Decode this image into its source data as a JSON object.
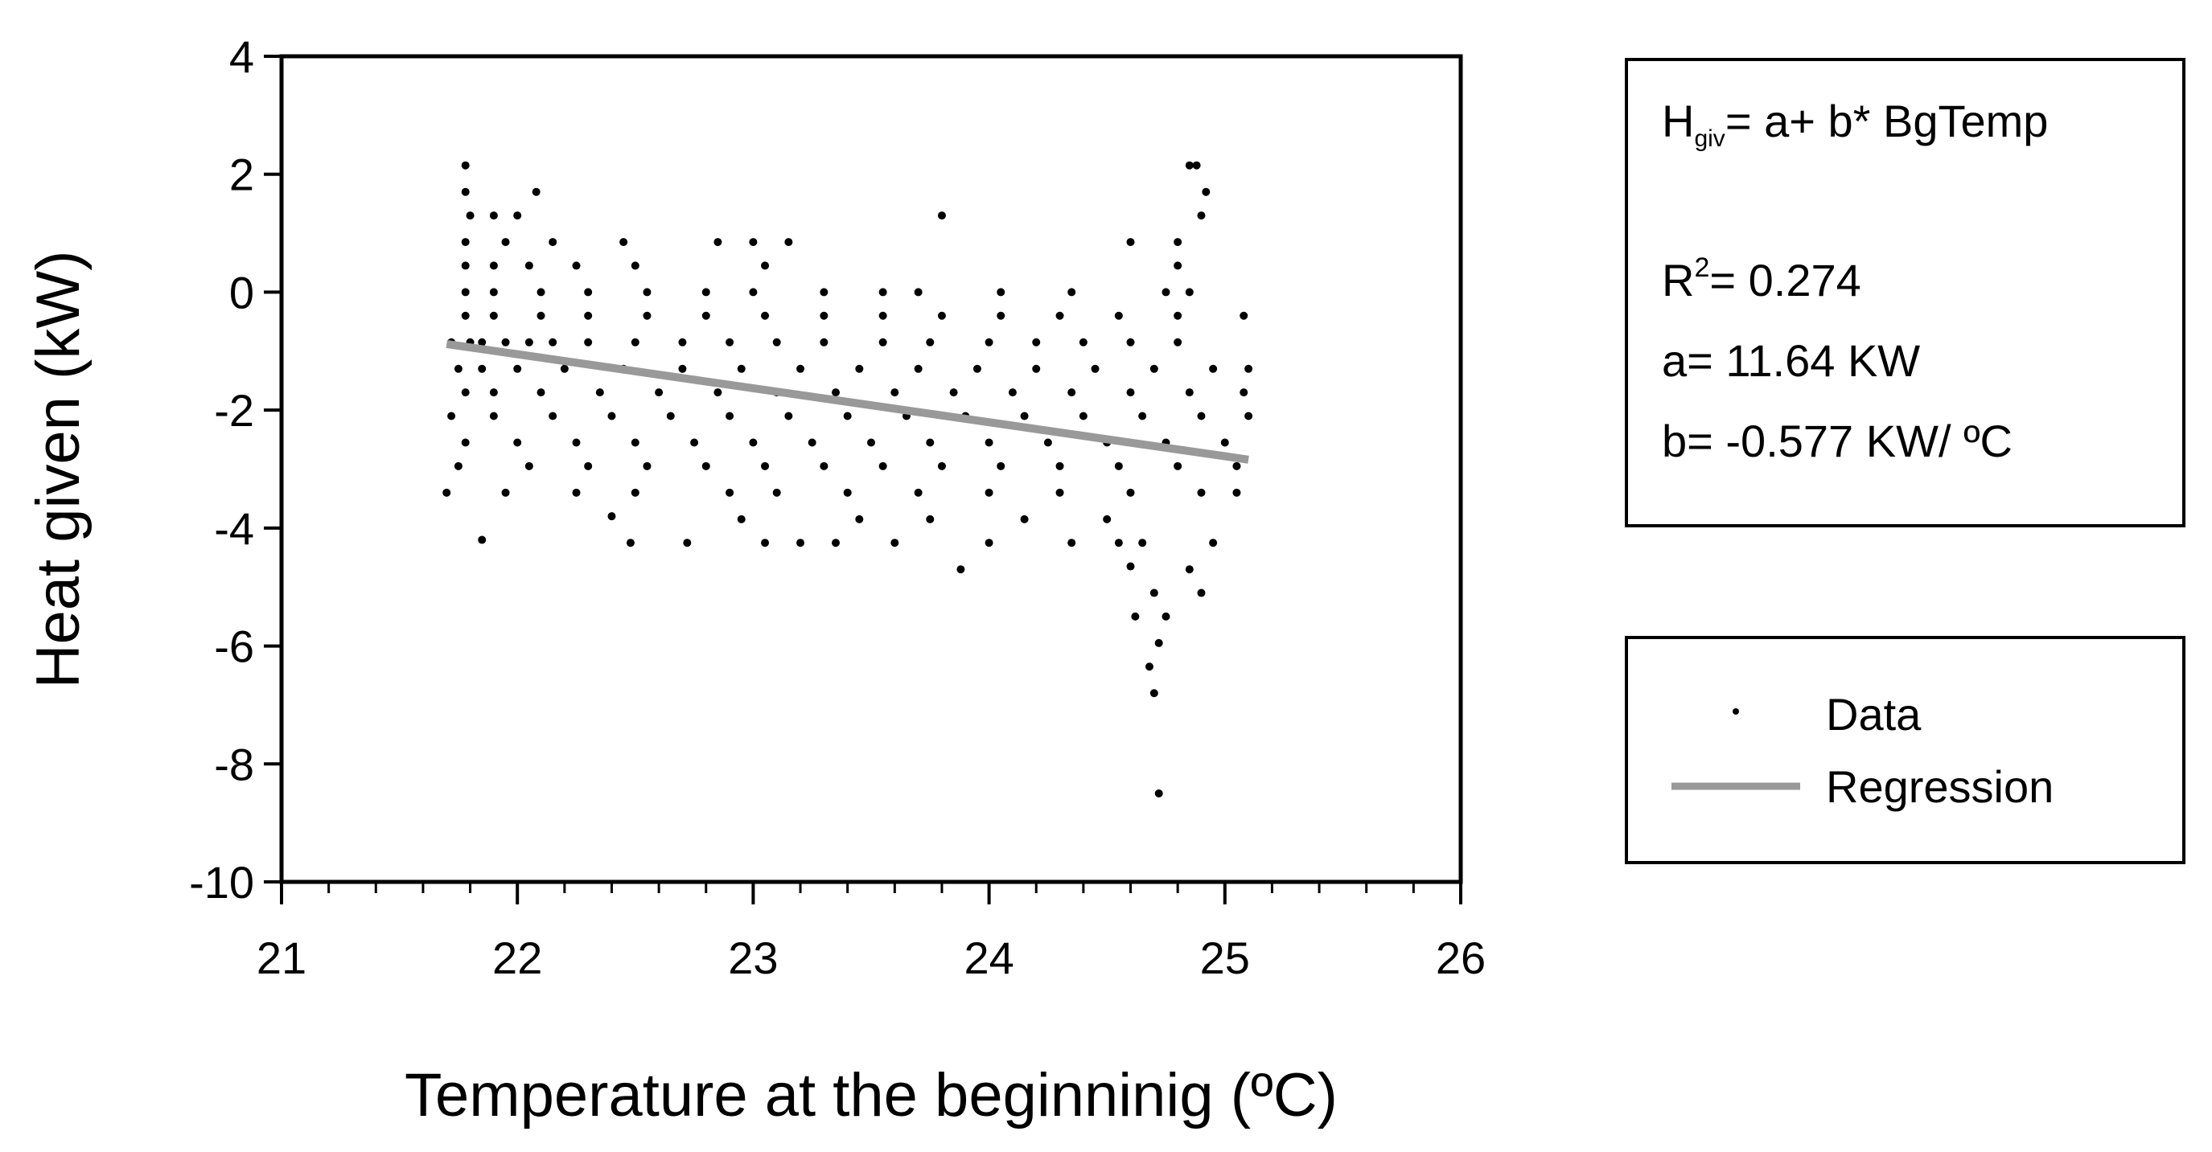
{
  "chart_data": {
    "type": "scatter",
    "xlabel": "Temperature at the beginninig (ºC)",
    "ylabel": "Heat given (kW)",
    "xlim": [
      21,
      26
    ],
    "ylim": [
      -10,
      4
    ],
    "x_ticks": [
      "21",
      "22",
      "23",
      "24",
      "25",
      "26"
    ],
    "y_ticks": [
      "4",
      "2",
      "0",
      "-2",
      "-4",
      "-6",
      "-8",
      "-10"
    ],
    "grid": false,
    "legend_position": "right",
    "series": [
      {
        "name": "Data",
        "marker": "dot",
        "color": "#000000",
        "points": [
          [
            21.72,
            -0.85
          ],
          [
            21.8,
            -0.85
          ],
          [
            21.85,
            -0.85
          ],
          [
            21.95,
            -0.85
          ],
          [
            22.05,
            -0.85
          ],
          [
            22.15,
            -0.85
          ],
          [
            22.3,
            -0.85
          ],
          [
            22.5,
            -0.85
          ],
          [
            22.7,
            -0.85
          ],
          [
            22.9,
            -0.85
          ],
          [
            23.1,
            -0.85
          ],
          [
            23.3,
            -0.85
          ],
          [
            23.55,
            -0.85
          ],
          [
            23.75,
            -0.85
          ],
          [
            24.0,
            -0.85
          ],
          [
            24.2,
            -0.85
          ],
          [
            24.4,
            -0.85
          ],
          [
            24.6,
            -0.85
          ],
          [
            24.8,
            -0.85
          ],
          [
            21.75,
            -1.3
          ],
          [
            21.85,
            -1.3
          ],
          [
            22.0,
            -1.3
          ],
          [
            22.2,
            -1.3
          ],
          [
            22.45,
            -1.3
          ],
          [
            22.7,
            -1.3
          ],
          [
            22.95,
            -1.3
          ],
          [
            23.2,
            -1.3
          ],
          [
            23.45,
            -1.3
          ],
          [
            23.7,
            -1.3
          ],
          [
            23.95,
            -1.3
          ],
          [
            24.2,
            -1.3
          ],
          [
            24.45,
            -1.3
          ],
          [
            24.7,
            -1.3
          ],
          [
            24.95,
            -1.3
          ],
          [
            25.1,
            -1.3
          ],
          [
            21.78,
            -1.7
          ],
          [
            21.9,
            -1.7
          ],
          [
            22.1,
            -1.7
          ],
          [
            22.35,
            -1.7
          ],
          [
            22.6,
            -1.7
          ],
          [
            22.85,
            -1.7
          ],
          [
            23.1,
            -1.7
          ],
          [
            23.35,
            -1.7
          ],
          [
            23.6,
            -1.7
          ],
          [
            23.85,
            -1.7
          ],
          [
            24.1,
            -1.7
          ],
          [
            24.35,
            -1.7
          ],
          [
            24.6,
            -1.7
          ],
          [
            24.85,
            -1.7
          ],
          [
            25.08,
            -1.7
          ],
          [
            21.72,
            -2.1
          ],
          [
            21.9,
            -2.1
          ],
          [
            22.15,
            -2.1
          ],
          [
            22.4,
            -2.1
          ],
          [
            22.65,
            -2.1
          ],
          [
            22.9,
            -2.1
          ],
          [
            23.15,
            -2.1
          ],
          [
            23.4,
            -2.1
          ],
          [
            23.65,
            -2.1
          ],
          [
            23.9,
            -2.1
          ],
          [
            24.15,
            -2.1
          ],
          [
            24.4,
            -2.1
          ],
          [
            24.65,
            -2.1
          ],
          [
            24.9,
            -2.1
          ],
          [
            25.1,
            -2.1
          ],
          [
            21.78,
            -2.55
          ],
          [
            22.0,
            -2.55
          ],
          [
            22.25,
            -2.55
          ],
          [
            22.5,
            -2.55
          ],
          [
            22.75,
            -2.55
          ],
          [
            23.0,
            -2.55
          ],
          [
            23.25,
            -2.55
          ],
          [
            23.5,
            -2.55
          ],
          [
            23.75,
            -2.55
          ],
          [
            24.0,
            -2.55
          ],
          [
            24.25,
            -2.55
          ],
          [
            24.5,
            -2.55
          ],
          [
            24.75,
            -2.55
          ],
          [
            25.0,
            -2.55
          ],
          [
            21.75,
            -2.95
          ],
          [
            22.05,
            -2.95
          ],
          [
            22.3,
            -2.95
          ],
          [
            22.55,
            -2.95
          ],
          [
            22.8,
            -2.95
          ],
          [
            23.05,
            -2.95
          ],
          [
            23.3,
            -2.95
          ],
          [
            23.55,
            -2.95
          ],
          [
            23.8,
            -2.95
          ],
          [
            24.05,
            -2.95
          ],
          [
            24.3,
            -2.95
          ],
          [
            24.55,
            -2.95
          ],
          [
            24.8,
            -2.95
          ],
          [
            25.05,
            -2.95
          ],
          [
            21.7,
            -3.4
          ],
          [
            21.95,
            -3.4
          ],
          [
            22.25,
            -3.4
          ],
          [
            22.5,
            -3.4
          ],
          [
            22.9,
            -3.4
          ],
          [
            23.1,
            -3.4
          ],
          [
            23.4,
            -3.4
          ],
          [
            23.7,
            -3.4
          ],
          [
            24.0,
            -3.4
          ],
          [
            24.3,
            -3.4
          ],
          [
            24.6,
            -3.4
          ],
          [
            24.9,
            -3.4
          ],
          [
            25.05,
            -3.4
          ],
          [
            21.78,
            -0.4
          ],
          [
            21.9,
            -0.4
          ],
          [
            22.1,
            -0.4
          ],
          [
            22.3,
            -0.4
          ],
          [
            22.55,
            -0.4
          ],
          [
            22.8,
            -0.4
          ],
          [
            23.05,
            -0.4
          ],
          [
            23.3,
            -0.4
          ],
          [
            23.55,
            -0.4
          ],
          [
            23.8,
            -0.4
          ],
          [
            24.05,
            -0.4
          ],
          [
            24.3,
            -0.4
          ],
          [
            24.55,
            -0.4
          ],
          [
            24.8,
            -0.4
          ],
          [
            25.08,
            -0.4
          ],
          [
            21.78,
            0.0
          ],
          [
            21.9,
            0.0
          ],
          [
            22.1,
            0.0
          ],
          [
            22.3,
            0.0
          ],
          [
            22.55,
            0.0
          ],
          [
            22.8,
            0.0
          ],
          [
            23.0,
            0.0
          ],
          [
            23.3,
            0.0
          ],
          [
            23.55,
            0.0
          ],
          [
            23.7,
            0.0
          ],
          [
            24.05,
            0.0
          ],
          [
            24.35,
            0.0
          ],
          [
            24.75,
            0.0
          ],
          [
            24.85,
            0.0
          ],
          [
            21.78,
            0.45
          ],
          [
            21.9,
            0.45
          ],
          [
            22.05,
            0.45
          ],
          [
            22.25,
            0.45
          ],
          [
            22.5,
            0.45
          ],
          [
            23.05,
            0.45
          ],
          [
            24.8,
            0.45
          ],
          [
            21.78,
            0.85
          ],
          [
            21.95,
            0.85
          ],
          [
            22.15,
            0.85
          ],
          [
            22.45,
            0.85
          ],
          [
            22.85,
            0.85
          ],
          [
            23.0,
            0.85
          ],
          [
            23.15,
            0.85
          ],
          [
            24.6,
            0.85
          ],
          [
            24.8,
            0.85
          ],
          [
            21.8,
            1.3
          ],
          [
            21.9,
            1.3
          ],
          [
            22.0,
            1.3
          ],
          [
            23.8,
            1.3
          ],
          [
            24.9,
            1.3
          ],
          [
            21.78,
            1.7
          ],
          [
            22.08,
            1.7
          ],
          [
            24.92,
            1.7
          ],
          [
            21.78,
            2.15
          ],
          [
            24.85,
            2.15
          ],
          [
            24.88,
            2.15
          ],
          [
            21.85,
            -4.2
          ],
          [
            22.4,
            -3.8
          ],
          [
            22.48,
            -4.25
          ],
          [
            22.72,
            -4.25
          ],
          [
            22.95,
            -3.85
          ],
          [
            23.05,
            -4.25
          ],
          [
            23.2,
            -4.25
          ],
          [
            23.35,
            -4.25
          ],
          [
            23.45,
            -3.85
          ],
          [
            23.6,
            -4.25
          ],
          [
            23.75,
            -3.85
          ],
          [
            23.88,
            -4.7
          ],
          [
            24.0,
            -4.25
          ],
          [
            24.15,
            -3.85
          ],
          [
            24.35,
            -4.25
          ],
          [
            24.5,
            -3.85
          ],
          [
            24.55,
            -4.25
          ],
          [
            24.6,
            -4.65
          ],
          [
            24.65,
            -4.25
          ],
          [
            24.7,
            -5.1
          ],
          [
            24.62,
            -5.5
          ],
          [
            24.75,
            -5.5
          ],
          [
            24.72,
            -5.95
          ],
          [
            24.68,
            -6.35
          ],
          [
            24.7,
            -6.8
          ],
          [
            24.72,
            -8.5
          ],
          [
            24.85,
            -4.7
          ],
          [
            24.9,
            -5.1
          ],
          [
            24.95,
            -4.25
          ]
        ]
      },
      {
        "name": "Regression",
        "type": "line",
        "color": "#999999",
        "x": [
          21.7,
          25.1
        ],
        "y": [
          -0.88,
          -2.84
        ]
      }
    ],
    "annotation_box": {
      "equation_main": "H",
      "equation_sub": "giv",
      "equation_rest": "= a+ b* BgTemp",
      "r2_main": "R",
      "r2_sup": "2",
      "r2_rest": "= 0.274",
      "a_text": "a= 11.64 KW",
      "b_text": "b= -0.577 KW/ ºC"
    }
  }
}
